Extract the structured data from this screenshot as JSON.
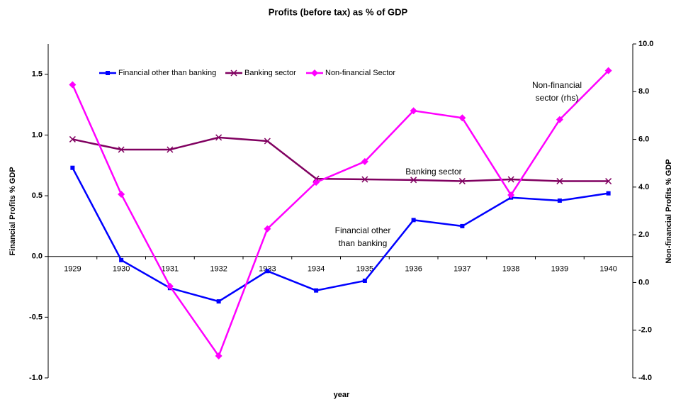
{
  "chart_data": {
    "type": "line",
    "title": "Profits (before tax) as % of GDP",
    "x_label": "year",
    "y_label": "Financial Profits % GDP",
    "y2_label": "Non-financial Profits % GDP",
    "categories": [
      "1929",
      "1930",
      "1931",
      "1932",
      "1933",
      "1934",
      "1935",
      "1936",
      "1937",
      "1938",
      "1939",
      "1940"
    ],
    "series": [
      {
        "name": "Financial other than banking",
        "color": "#0000ff",
        "marker": "square",
        "values": [
          0.73,
          -0.03,
          -0.26,
          -0.37,
          -0.12,
          -0.28,
          -0.2,
          0.3,
          0.25,
          0.485,
          0.46,
          0.52
        ]
      },
      {
        "name": "Banking sector",
        "color": "#800060",
        "marker": "x",
        "values": [
          0.965,
          0.88,
          0.88,
          0.98,
          0.95,
          0.64,
          0.635,
          0.63,
          0.62,
          0.635,
          0.62,
          0.62
        ]
      },
      {
        "name": "Non-financial Sector",
        "color": "#ff00ff",
        "marker": "diamond",
        "axis": "y2",
        "values": [
          8.29,
          3.7,
          -0.16,
          -3.08,
          2.25,
          4.2,
          5.07,
          7.2,
          6.9,
          3.67,
          6.83,
          8.88
        ]
      }
    ],
    "ylim": [
      -1,
      1.75
    ],
    "yticks": [
      {
        "value": -1,
        "label": "-1.0"
      },
      -0.5,
      {
        "value": 0,
        "label": "0.0"
      },
      0.5,
      {
        "value": 1,
        "label": "1.0"
      },
      1.5
    ],
    "y2lim": [
      -4,
      10
    ],
    "y2ticks": [
      {
        "value": -4,
        "label": "-4.0"
      },
      {
        "value": -2,
        "label": "-2.0"
      },
      {
        "value": 0,
        "label": "0.0"
      },
      {
        "value": 2,
        "label": "2.0"
      },
      {
        "value": 4,
        "label": "4.0"
      },
      {
        "value": 6,
        "label": "6.0"
      },
      {
        "value": 8,
        "label": "8.0"
      },
      {
        "value": 10,
        "label": "10.0"
      }
    ],
    "annotations": [
      {
        "lines": [
          "Non-financial",
          "sector (rhs)"
        ]
      },
      {
        "lines": [
          "Banking sector"
        ]
      },
      {
        "lines": [
          "Financial other",
          "than banking"
        ]
      }
    ]
  }
}
